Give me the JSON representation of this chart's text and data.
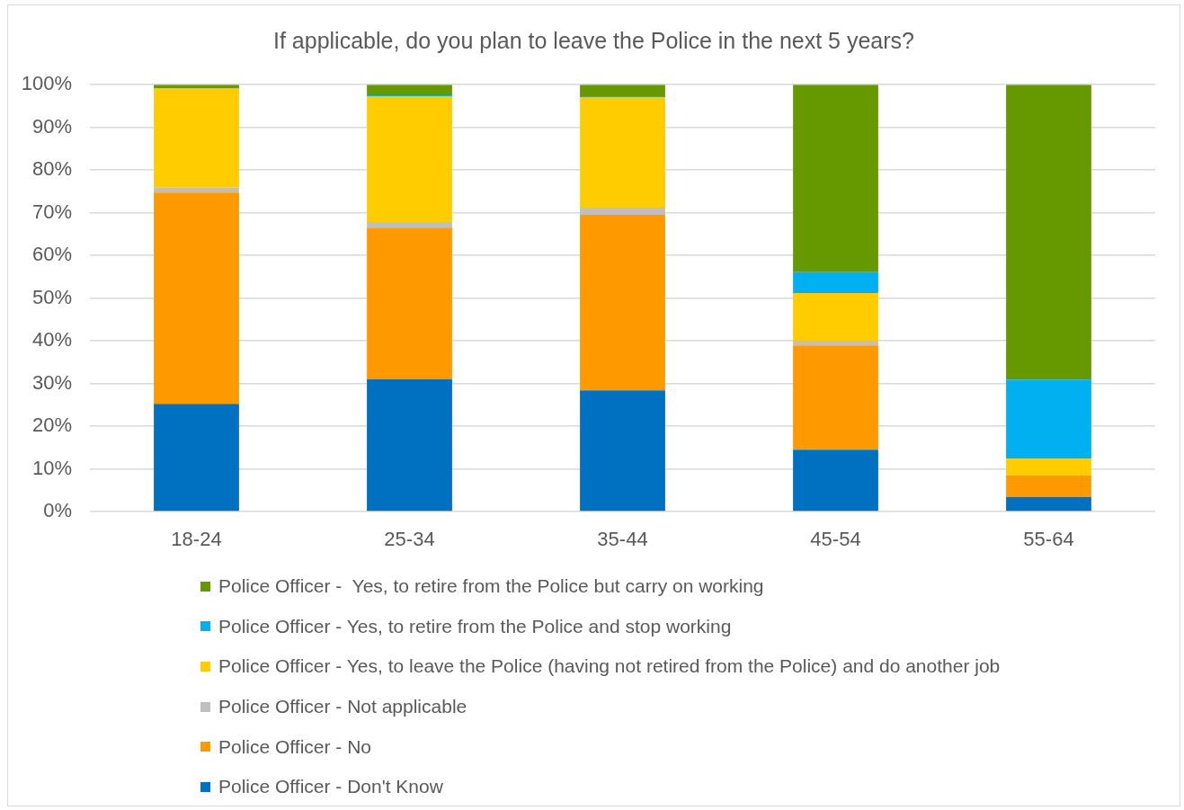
{
  "chart_data": {
    "type": "bar",
    "title": "If applicable, do you plan to leave the Police in the next 5 years?",
    "categories": [
      "18-24",
      "25-34",
      "35-44",
      "45-54",
      "55-64"
    ],
    "stacked": true,
    "series": [
      {
        "name": "Police Officer - Don't Know",
        "color": "#0070c0",
        "values": [
          25.2,
          31.0,
          28.4,
          14.5,
          3.4
        ]
      },
      {
        "name": "Police Officer - No",
        "color": "#ff9900",
        "values": [
          49.5,
          35.5,
          41.1,
          24.4,
          5.0
        ]
      },
      {
        "name": "Police Officer - Not applicable",
        "color": "#bfbfbf",
        "values": [
          1.2,
          1.3,
          1.7,
          1.1,
          0
        ]
      },
      {
        "name": "Police Officer - Yes, to leave the Police (having not retired from the Police) and do another job",
        "color": "#ffcc00",
        "values": [
          23.2,
          29.4,
          25.8,
          11.2,
          4.0
        ]
      },
      {
        "name": "Police Officer - Yes, to retire from the Police and stop working",
        "color": "#00b0f0",
        "values": [
          0,
          0.3,
          0.3,
          4.9,
          18.5
        ]
      },
      {
        "name": "Police Officer -  Yes, to retire from the Police but carry on working",
        "color": "#669900",
        "values": [
          0.9,
          2.5,
          2.7,
          43.9,
          69.1
        ]
      }
    ],
    "ylim": [
      0,
      100
    ],
    "yticks": [
      {
        "value": 0,
        "label": "0%"
      },
      {
        "value": 10,
        "label": "10%"
      },
      {
        "value": 20,
        "label": "20%"
      },
      {
        "value": 30,
        "label": "30%"
      },
      {
        "value": 40,
        "label": "40%"
      },
      {
        "value": 50,
        "label": "50%"
      },
      {
        "value": 60,
        "label": "60%"
      },
      {
        "value": 70,
        "label": "70%"
      },
      {
        "value": 80,
        "label": "80%"
      },
      {
        "value": 90,
        "label": "90%"
      },
      {
        "value": 100,
        "label": "100%"
      }
    ],
    "grid": "y",
    "legend": "bottom"
  }
}
